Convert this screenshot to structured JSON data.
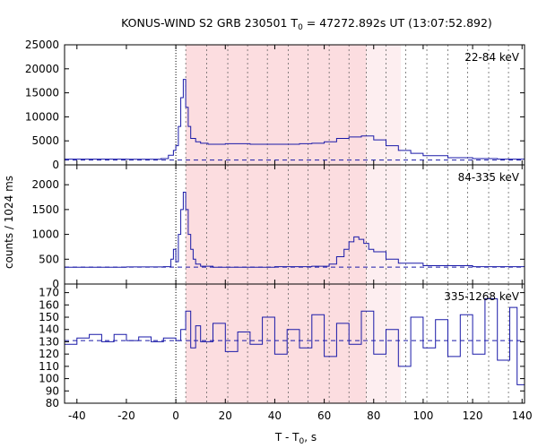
{
  "title_main": "KONUS-WIND S2 GRB 230501 T",
  "title_sub": "0",
  "title_rest": " = 47272.892s UT (13:07:52.892)",
  "ylabel": "counts / 1024 ms",
  "xlabel_main": "T - T",
  "xlabel_sub": "0",
  "xlabel_rest": ", s",
  "colors": {
    "curve": "#1a1aa8",
    "band_main": "#fcdde0",
    "band_light": "#fdeef0",
    "frame": "#000000"
  },
  "chart_data": {
    "type": "line",
    "shared_x": {
      "xlim": [
        -45,
        141
      ],
      "ticks": [
        -40,
        -20,
        0,
        20,
        40,
        60,
        80,
        100,
        120,
        140
      ],
      "t0_line": 0,
      "shaded_main": [
        4,
        77
      ],
      "shaded_light": [
        77,
        91
      ],
      "dashed_vlines": [
        4,
        12.5,
        21,
        29,
        37,
        45.5,
        53.5,
        62,
        70,
        77,
        85,
        93,
        101.5,
        110,
        118,
        126.5,
        134.5
      ]
    },
    "panels": [
      {
        "label": "22-84 keV",
        "ylim": [
          0,
          25000
        ],
        "yticks": [
          0,
          5000,
          10000,
          15000,
          20000,
          25000
        ],
        "background": 1000,
        "x": [
          -45,
          -20,
          -6,
          -3,
          -1,
          0,
          1,
          2,
          3,
          4,
          5,
          6,
          8,
          10,
          13,
          20,
          30,
          40,
          50,
          55,
          60,
          65,
          70,
          75,
          80,
          85,
          90,
          95,
          100,
          110,
          120,
          130,
          141
        ],
        "y": [
          1200,
          1150,
          1300,
          2000,
          3000,
          4000,
          8000,
          14000,
          17800,
          12000,
          8000,
          5500,
          4800,
          4500,
          4300,
          4400,
          4300,
          4300,
          4400,
          4500,
          4800,
          5500,
          5800,
          6000,
          5200,
          4000,
          3000,
          2400,
          1900,
          1500,
          1300,
          1200,
          1100
        ]
      },
      {
        "label": "84-335 keV",
        "ylim": [
          0,
          2400
        ],
        "yticks": [
          0,
          500,
          1000,
          1500,
          2000
        ],
        "background": 340,
        "x": [
          -45,
          -20,
          -5,
          -2,
          -1,
          0,
          1,
          2,
          3,
          4,
          5,
          6,
          7,
          8,
          10,
          15,
          25,
          40,
          55,
          62,
          65,
          68,
          70,
          72,
          74,
          76,
          78,
          80,
          85,
          90,
          100,
          120,
          141
        ],
        "y": [
          340,
          345,
          350,
          500,
          700,
          450,
          1000,
          1500,
          1850,
          1500,
          1000,
          700,
          500,
          400,
          360,
          340,
          340,
          350,
          360,
          400,
          550,
          700,
          850,
          950,
          900,
          820,
          700,
          650,
          500,
          420,
          370,
          350,
          340
        ]
      },
      {
        "label": "335-1268 keV",
        "ylim": [
          80,
          177
        ],
        "yticks": [
          80,
          90,
          100,
          110,
          120,
          130,
          140,
          150,
          160,
          170
        ],
        "background": 131,
        "x": [
          -45,
          -40,
          -35,
          -30,
          -25,
          -20,
          -15,
          -10,
          -5,
          0,
          2,
          4,
          6,
          8,
          10,
          15,
          20,
          25,
          30,
          35,
          40,
          45,
          50,
          55,
          60,
          65,
          70,
          75,
          80,
          85,
          90,
          95,
          100,
          105,
          110,
          115,
          120,
          125,
          130,
          135,
          138,
          141
        ],
        "y": [
          128,
          133,
          136,
          130,
          136,
          131,
          134,
          130,
          133,
          131,
          140,
          155,
          125,
          143,
          130,
          145,
          122,
          138,
          128,
          150,
          120,
          140,
          125,
          152,
          118,
          145,
          128,
          155,
          120,
          140,
          110,
          150,
          125,
          148,
          118,
          152,
          120,
          165,
          115,
          158,
          95,
          130
        ]
      }
    ]
  }
}
